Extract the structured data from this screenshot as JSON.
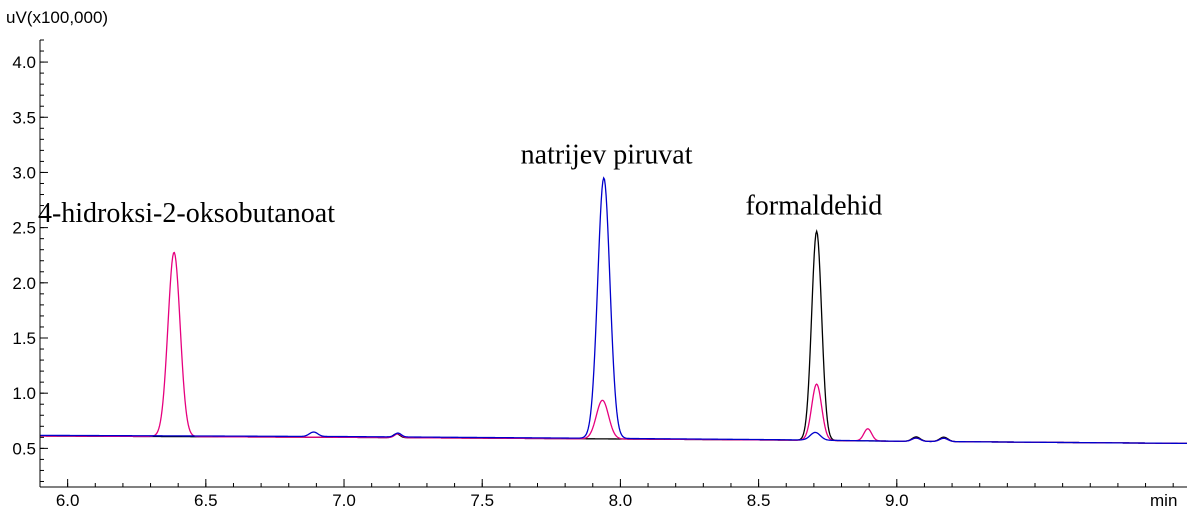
{
  "chart_data": {
    "type": "line",
    "y_unit_label": "uV(x100,000)",
    "x_unit_label": "min",
    "xlim": [
      5.9,
      10.05
    ],
    "ylim": [
      0.15,
      4.2
    ],
    "x_ticks": [
      6.0,
      6.5,
      7.0,
      7.5,
      8.0,
      8.5,
      9.0
    ],
    "x_tick_labels": [
      "6.0",
      "6.5",
      "7.0",
      "7.5",
      "8.0",
      "8.5",
      "9.0"
    ],
    "y_ticks": [
      0.5,
      1.0,
      1.5,
      2.0,
      2.5,
      3.0,
      3.5,
      4.0
    ],
    "y_tick_labels": [
      "0.5",
      "1.0",
      "1.5",
      "2.0",
      "2.5",
      "3.0",
      "3.5",
      "4.0"
    ],
    "grid": false,
    "annotations": [
      {
        "text": "4-hidroksi-2-oksobutanoat",
        "x": 6.43,
        "y": 2.55
      },
      {
        "text": "natrijev piruvat",
        "x": 7.95,
        "y": 3.08
      },
      {
        "text": "formaldehid",
        "x": 8.7,
        "y": 2.62
      }
    ],
    "series": [
      {
        "color": "#000000",
        "baseline": [
          [
            5.9,
            0.612
          ],
          [
            7.0,
            0.6
          ],
          [
            8.0,
            0.585
          ],
          [
            8.6,
            0.575
          ],
          [
            9.0,
            0.565
          ],
          [
            10.05,
            0.545
          ]
        ],
        "peaks": [
          {
            "x": 7.19,
            "height": 0.035,
            "sigma": 0.012
          },
          {
            "x": 8.71,
            "height": 1.895,
            "sigma": 0.018
          },
          {
            "x": 9.07,
            "height": 0.04,
            "sigma": 0.015
          },
          {
            "x": 9.17,
            "height": 0.04,
            "sigma": 0.015
          }
        ]
      },
      {
        "color": "#e6007e",
        "baseline": [
          [
            5.9,
            0.612
          ],
          [
            7.0,
            0.6
          ],
          [
            8.0,
            0.585
          ],
          [
            8.6,
            0.575
          ],
          [
            9.0,
            0.565
          ],
          [
            10.05,
            0.545
          ]
        ],
        "peaks": [
          {
            "x": 6.385,
            "height": 1.67,
            "sigma": 0.022
          },
          {
            "x": 7.195,
            "height": 0.035,
            "sigma": 0.012
          },
          {
            "x": 7.935,
            "height": 0.35,
            "sigma": 0.022
          },
          {
            "x": 8.71,
            "height": 0.51,
            "sigma": 0.018
          },
          {
            "x": 8.895,
            "height": 0.11,
            "sigma": 0.014
          },
          {
            "x": 9.07,
            "height": 0.03,
            "sigma": 0.015
          },
          {
            "x": 9.17,
            "height": 0.03,
            "sigma": 0.015
          }
        ]
      },
      {
        "color": "#0000cc",
        "baseline": [
          [
            5.9,
            0.618
          ],
          [
            7.0,
            0.607
          ],
          [
            8.0,
            0.59
          ],
          [
            8.6,
            0.578
          ],
          [
            9.0,
            0.565
          ],
          [
            10.05,
            0.545
          ]
        ],
        "peaks": [
          {
            "x": 6.89,
            "height": 0.04,
            "sigma": 0.015
          },
          {
            "x": 7.195,
            "height": 0.035,
            "sigma": 0.012
          },
          {
            "x": 7.94,
            "height": 2.36,
            "sigma": 0.022
          },
          {
            "x": 8.705,
            "height": 0.07,
            "sigma": 0.018
          },
          {
            "x": 9.07,
            "height": 0.03,
            "sigma": 0.015
          },
          {
            "x": 9.17,
            "height": 0.03,
            "sigma": 0.015
          }
        ]
      }
    ]
  }
}
